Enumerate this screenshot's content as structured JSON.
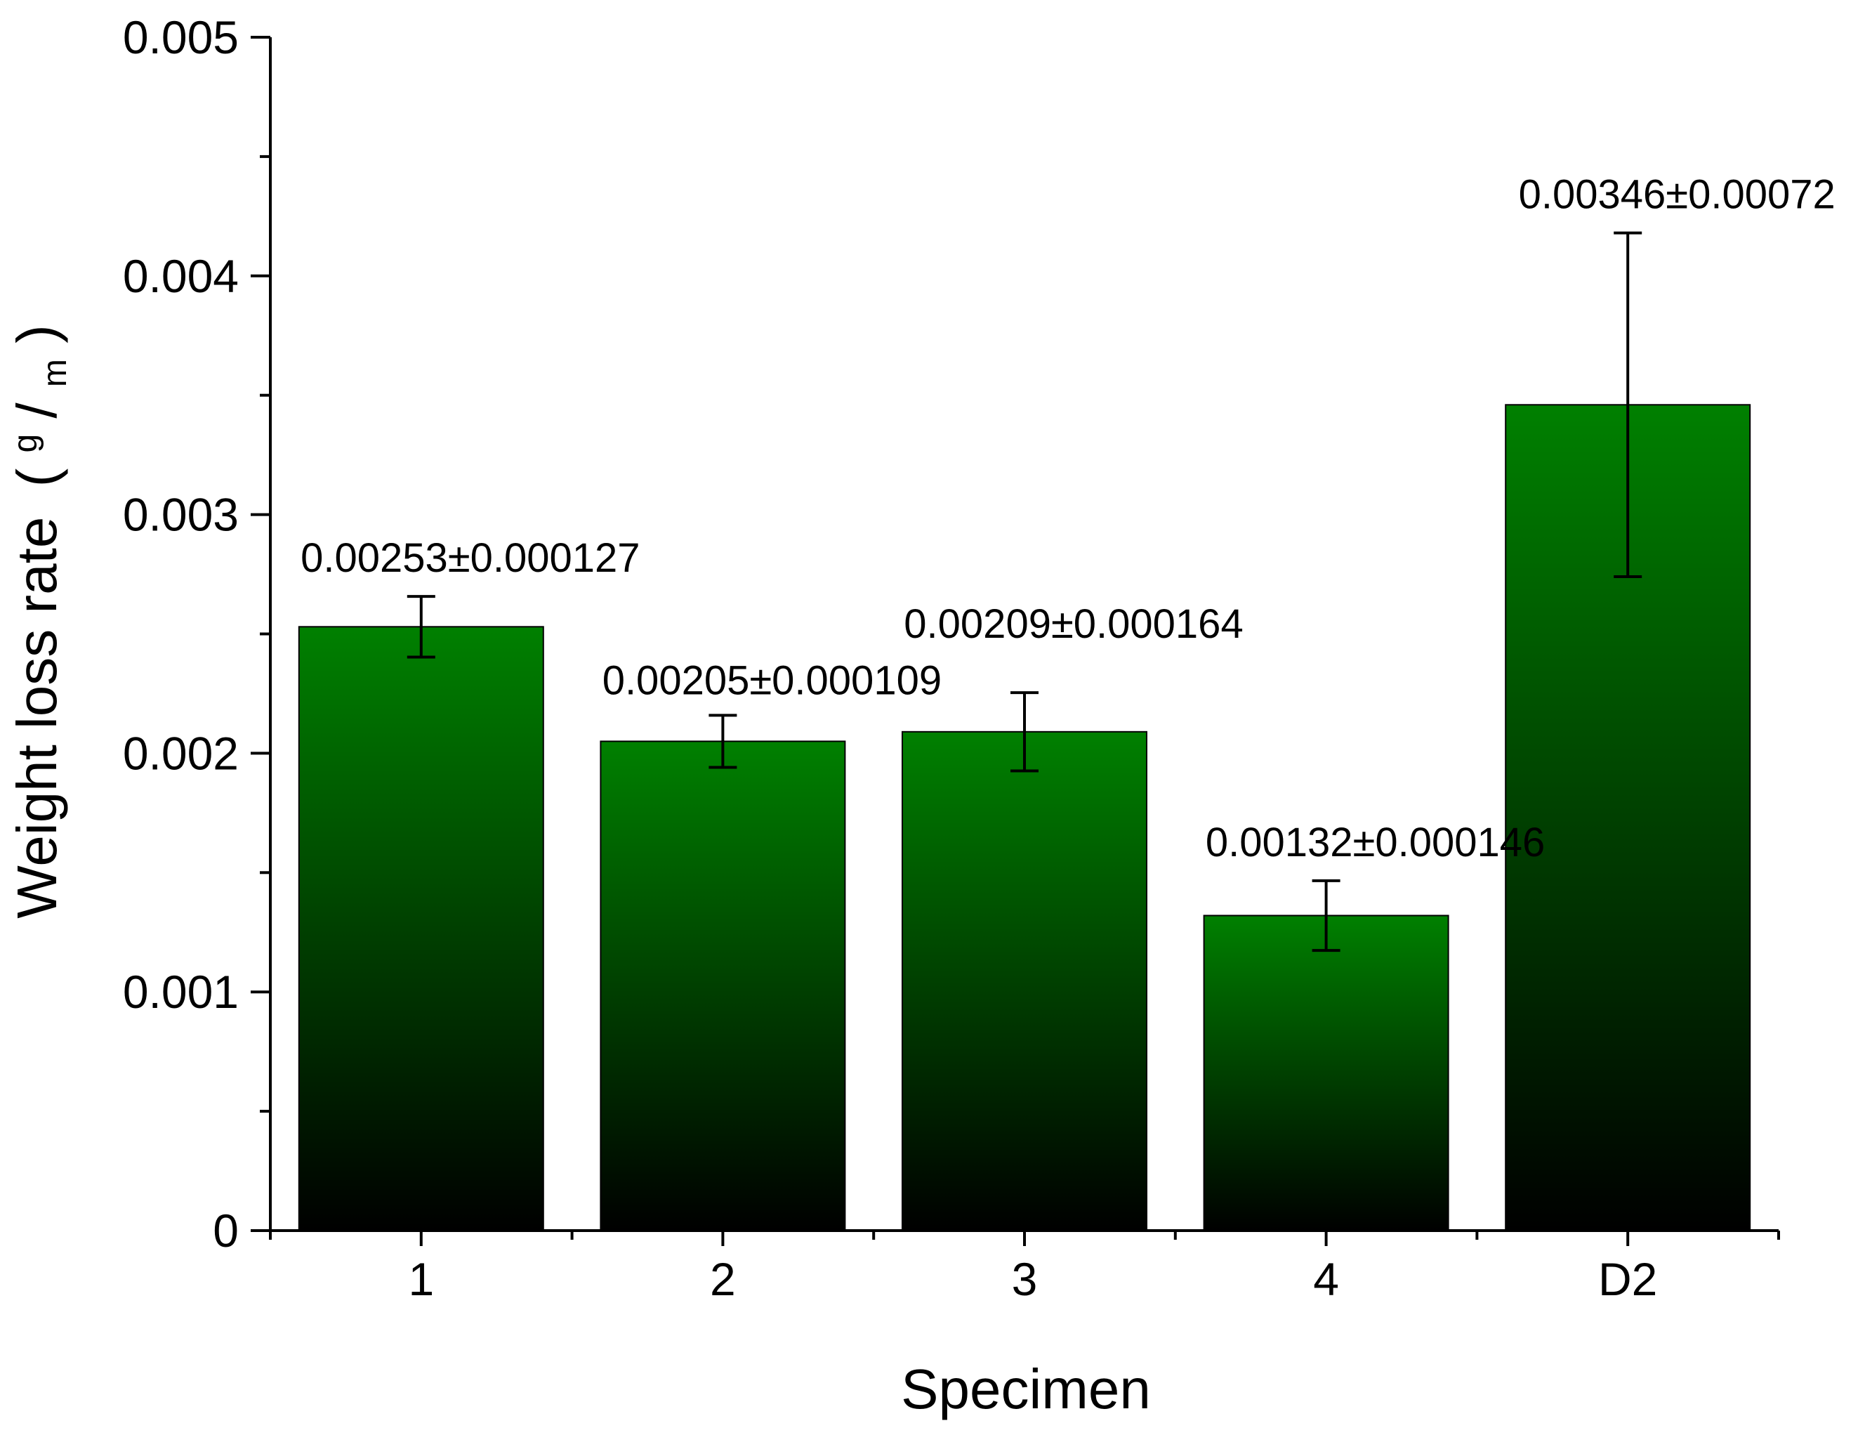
{
  "chart_data": {
    "type": "bar",
    "title": "",
    "xlabel": "Specimen",
    "ylabel": "Weight loss rate",
    "ylabel_unit": {
      "open": "(",
      "numerator": "g",
      "slash": "/",
      "denominator": "m",
      "close": ")"
    },
    "categories": [
      "1",
      "2",
      "3",
      "4",
      "D2"
    ],
    "values": [
      0.00253,
      0.00205,
      0.00209,
      0.00132,
      0.00346
    ],
    "errors": [
      0.000127,
      0.000109,
      0.000164,
      0.000146,
      0.00072
    ],
    "data_labels": [
      "0.00253±0.000127",
      "0.00205±0.000109",
      "0.00209±0.000164",
      "0.00132±0.000146",
      "0.00346±0.00072"
    ],
    "ylim": [
      0,
      0.005
    ],
    "yticks": [
      0,
      0.001,
      0.002,
      0.003,
      0.004,
      0.005
    ],
    "ytick_labels": [
      "0",
      "0.001",
      "0.002",
      "0.003",
      "0.004",
      "0.005"
    ],
    "grid": false,
    "legend": "none",
    "colors": {
      "bar_top": "#008000",
      "bar_bottom": "#000000",
      "axis": "#000000"
    }
  }
}
